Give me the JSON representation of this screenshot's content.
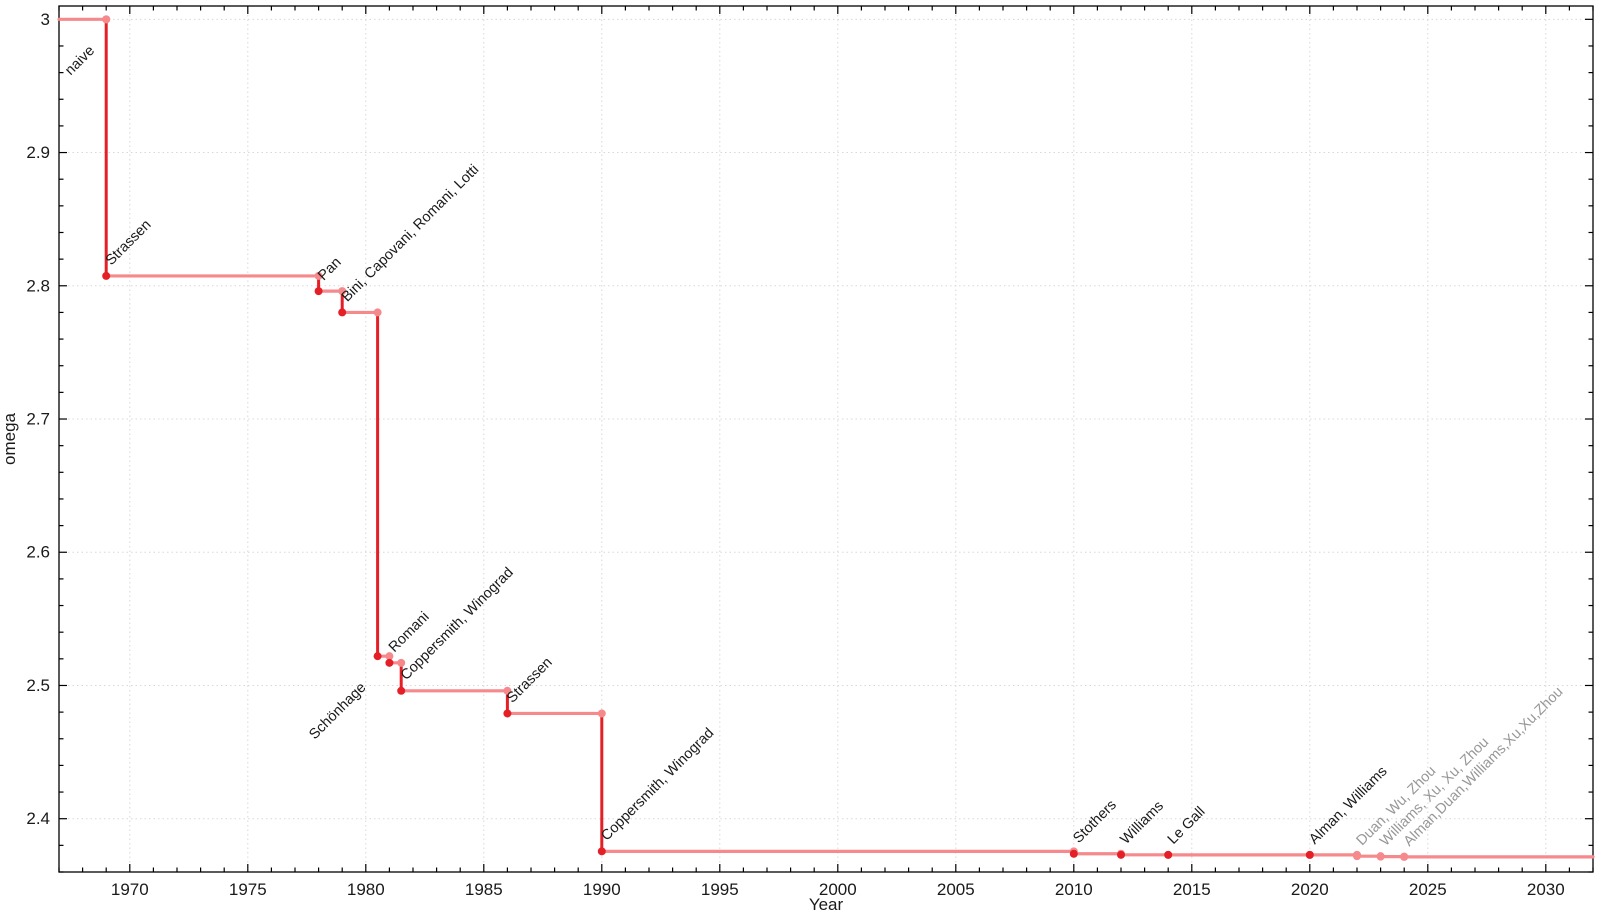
{
  "figure": {
    "background": "#ffffff",
    "description": "Step chart of the best known exponent omega of matrix multiplication over time"
  },
  "chart_data": {
    "type": "line",
    "step": "post",
    "title": "",
    "xlabel": "Year",
    "ylabel": "omega",
    "xlim": [
      1967,
      2032
    ],
    "ylim": [
      2.36,
      3.01
    ],
    "grid": {
      "show": true,
      "style": "dotted",
      "color": "#d8d8d8"
    },
    "legend": "none",
    "xticks": {
      "major": [
        1970,
        1975,
        1980,
        1985,
        1990,
        1995,
        2000,
        2005,
        2010,
        2015,
        2020,
        2025,
        2030
      ],
      "labels": [
        "1970",
        "1975",
        "1980",
        "1985",
        "1990",
        "1995",
        "2000",
        "2005",
        "2010",
        "2015",
        "2020",
        "2025",
        "2030"
      ],
      "minor_step": 1
    },
    "yticks": {
      "major": [
        2.4,
        2.5,
        2.6,
        2.7,
        2.8,
        2.9,
        3.0
      ],
      "labels": [
        "2.4",
        "2.5",
        "2.6",
        "2.7",
        "2.8",
        "2.9",
        "3"
      ],
      "minor_step": 0.02
    },
    "colors": {
      "step_light": "#f5898c",
      "step_dark": "#e41f26",
      "marker_light": "#f5898c",
      "marker_dark": "#e41f26",
      "label_black": "#1a1a1a",
      "label_gray": "#979797",
      "axis": "#000000",
      "tick_text": "#1a1a1a"
    },
    "start_omega": 3.0,
    "points": [
      {
        "year": 1969,
        "omega": 3.0,
        "label": "naive",
        "marker": "light",
        "label_color": "black",
        "label_side": "below"
      },
      {
        "year": 1969,
        "omega": 2.8074,
        "label": "Strassen",
        "marker": "dark",
        "label_color": "black",
        "label_side": "above"
      },
      {
        "year": 1978,
        "omega": 2.796,
        "label": "Pan",
        "marker": "dark",
        "label_color": "black",
        "label_side": "above"
      },
      {
        "year": 1979,
        "omega": 2.78,
        "label": "Bini, Capovani, Romani, Lotti",
        "marker": "dark",
        "label_color": "black",
        "label_side": "above"
      },
      {
        "year": 1980.5,
        "omega": 2.522,
        "label": "Schönhage",
        "marker": "dark",
        "label_color": "black",
        "label_side": "below"
      },
      {
        "year": 1981,
        "omega": 2.517,
        "label": "Romani",
        "marker": "dark",
        "label_color": "black",
        "label_side": "above"
      },
      {
        "year": 1981.5,
        "omega": 2.496,
        "label": "Coppersmith, Winograd",
        "marker": "dark",
        "label_color": "black",
        "label_side": "above"
      },
      {
        "year": 1986,
        "omega": 2.479,
        "label": "Strassen",
        "marker": "dark",
        "label_color": "black",
        "label_side": "above"
      },
      {
        "year": 1990,
        "omega": 2.3755,
        "label": "Coppersmith, Winograd",
        "marker": "dark",
        "label_color": "black",
        "label_side": "above"
      },
      {
        "year": 2010,
        "omega": 2.3737,
        "label": "Stothers",
        "marker": "dark",
        "label_color": "black",
        "label_side": "above"
      },
      {
        "year": 2012,
        "omega": 2.3729,
        "label": "Williams",
        "marker": "dark",
        "label_color": "black",
        "label_side": "above"
      },
      {
        "year": 2014,
        "omega": 2.3728639,
        "label": "Le Gall",
        "marker": "dark",
        "label_color": "black",
        "label_side": "above"
      },
      {
        "year": 2020,
        "omega": 2.3728596,
        "label": "Alman, Williams",
        "marker": "dark",
        "label_color": "black",
        "label_side": "above"
      },
      {
        "year": 2022,
        "omega": 2.37188,
        "label": "Duan, Wu, Zhou",
        "marker": "light",
        "label_color": "gray",
        "label_side": "above"
      },
      {
        "year": 2023,
        "omega": 2.371552,
        "label": "Williams, Xu, Xu, Zhou",
        "marker": "light",
        "label_color": "gray",
        "label_side": "above"
      },
      {
        "year": 2024,
        "omega": 2.371339,
        "label": "Alman,Duan,Williams,Xu,Xu,Zhou",
        "marker": "light",
        "label_color": "gray",
        "label_side": "above"
      }
    ]
  }
}
